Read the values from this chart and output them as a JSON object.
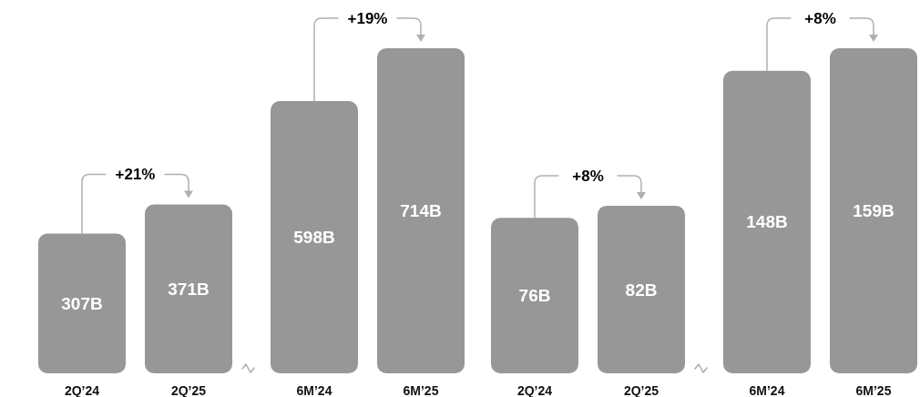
{
  "chart_data": [
    {
      "type": "bar",
      "categories": [
        "2Q’24",
        "2Q’25",
        "6M’24",
        "6M’25"
      ],
      "values": [
        307,
        371,
        598,
        714
      ],
      "value_labels": [
        "307B",
        "371B",
        "598B",
        "714B"
      ],
      "color": "#979797",
      "annotations": [
        "+21%",
        "+19%"
      ]
    },
    {
      "type": "bar",
      "categories": [
        "2Q’24",
        "2Q’25",
        "6M’24",
        "6M’25"
      ],
      "values": [
        76,
        82,
        148,
        159
      ],
      "value_labels": [
        "76B",
        "82B",
        "148B",
        "159B"
      ],
      "color": "#979797",
      "annotations": [
        "+8%",
        "+8%"
      ]
    }
  ]
}
